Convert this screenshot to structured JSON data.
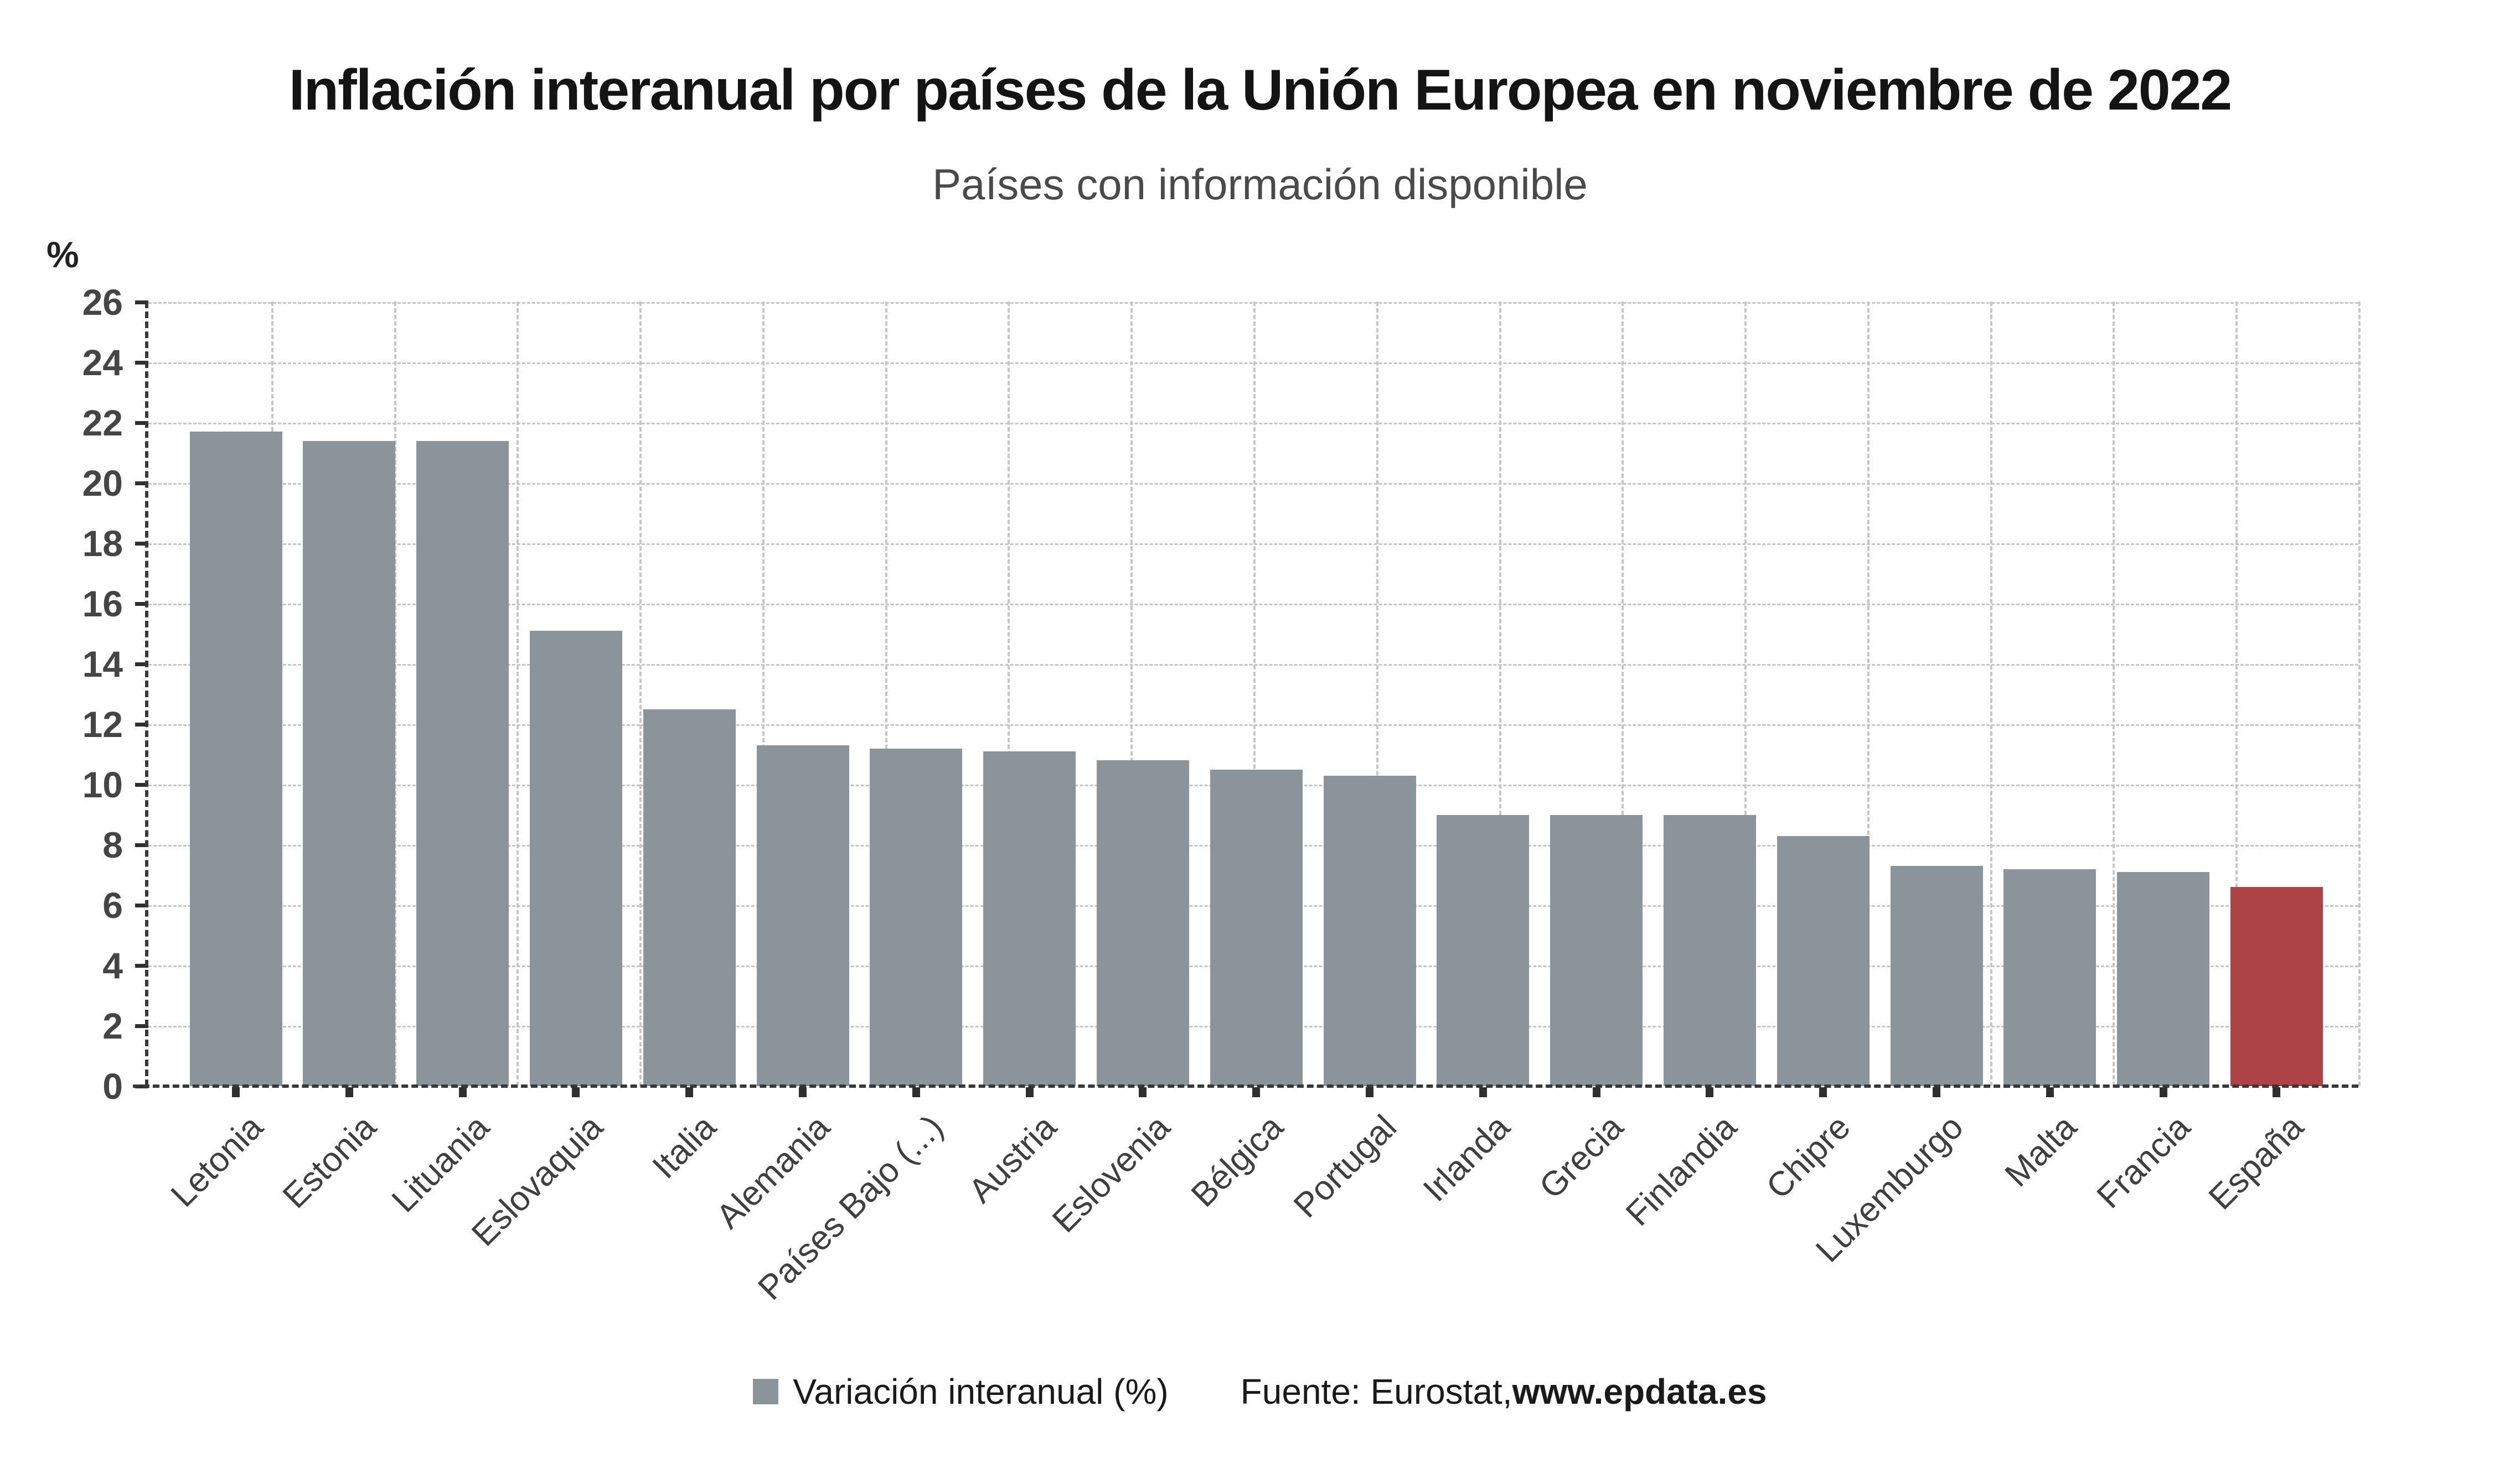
{
  "title": "Inflación interanual por países de la Unión Europea en noviembre de 2022",
  "subtitle": "Países con información disponible",
  "y_axis_unit": "%",
  "legend": {
    "label": "Variación interanual (%)"
  },
  "source": {
    "prefix": "Fuente: Eurostat, ",
    "site": "www.epdata.es"
  },
  "colors": {
    "bar": "#8b939b",
    "highlight": "#ad4247",
    "grid": "#c6c6c6",
    "axis": "#383838",
    "title_text": "#141414",
    "tick_text": "#454545"
  },
  "chart_data": {
    "type": "bar",
    "categories": [
      "Letonia",
      "Estonia",
      "Lituania",
      "Eslovaquia",
      "Italia",
      "Alemania",
      "Países Bajo (...)",
      "Austria",
      "Eslovenia",
      "Bélgica",
      "Portugal",
      "Irlanda",
      "Grecia",
      "Finlandia",
      "Chipre",
      "Luxemburgo",
      "Malta",
      "Francia",
      "España"
    ],
    "values": [
      21.7,
      21.4,
      21.4,
      15.1,
      12.5,
      11.3,
      11.2,
      11.1,
      10.8,
      10.5,
      10.3,
      9.0,
      9.0,
      9.0,
      8.3,
      7.3,
      7.2,
      7.1,
      6.6
    ],
    "series_name": "Variación interanual (%)",
    "highlight_category": "España",
    "title": "Inflación interanual por países de la Unión Europea en noviembre de 2022",
    "xlabel": "",
    "ylabel": "%",
    "ylim": [
      0,
      26
    ],
    "y_ticks": [
      0,
      2,
      4,
      6,
      8,
      10,
      12,
      14,
      16,
      18,
      20,
      22,
      24,
      26
    ],
    "grid": "dashed",
    "legend_position": "bottom"
  }
}
